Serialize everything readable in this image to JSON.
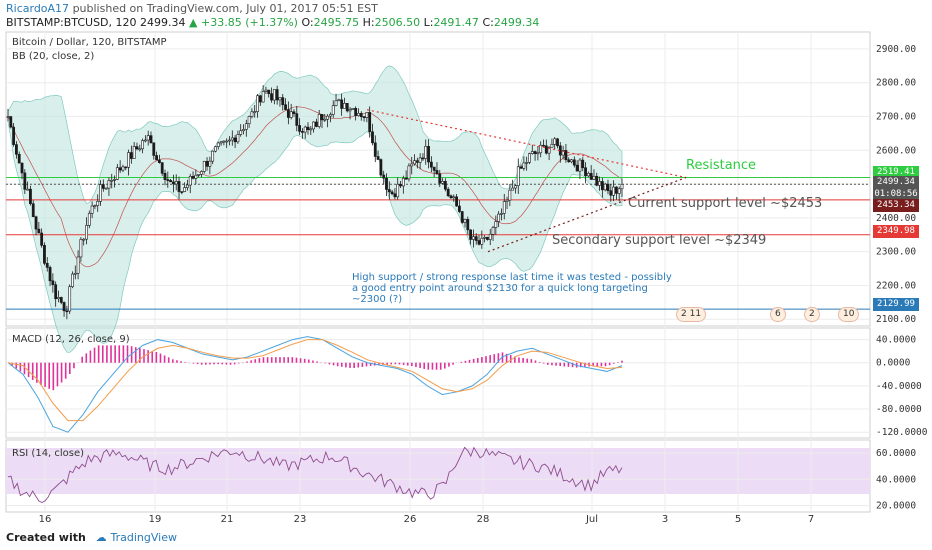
{
  "header": {
    "user": "RicardoA17",
    "published": "published on TradingView.com, July 01, 2017 05:51 EST",
    "symbol": "BITSTAMP:BTCUSD, 120",
    "last": "2499.34",
    "change_arrow": "▲",
    "change": "+33.85 (+1.37%)",
    "o_label": "O:",
    "o": "2495.75",
    "h_label": "H:",
    "h": "2506.50",
    "l_label": "L:",
    "l": "2491.47",
    "c_label": "C:",
    "c": "2499.34"
  },
  "panes": {
    "price_title": "Bitcoin / Dollar, 120, BITSTAMP",
    "bb_title": "BB (20, close, 2)",
    "macd_title": "MACD (12, 26, close, 9)",
    "rsi_title": "RSI (14, close)"
  },
  "annotations": {
    "resistance": "Resistance",
    "current_support": "Current support level ~$2453",
    "secondary_support": "Secondary support level ~$2349",
    "high_support_1": "High support / strong response last time it was tested - possibly",
    "high_support_2": "a good entry point around $2130 for a quick long targeting",
    "high_support_3": "~2300 (?)"
  },
  "price_labels": {
    "resistance": "2519.41",
    "last": "2499.34",
    "countdown": "01:08:56",
    "support": "2453.34",
    "secondary": "2349.98",
    "high_support": "2129.99"
  },
  "event_flags": [
    {
      "label": "2  11"
    },
    {
      "label": "6"
    },
    {
      "label": "2"
    },
    {
      "label": "10"
    }
  ],
  "footer": {
    "created": "Created with",
    "brand": "TradingView"
  },
  "colors": {
    "up": "#26a544",
    "candle": "#1b1b1b",
    "bb_fill": "#bfe5e0",
    "resistance": "#2ecc40",
    "support": "#e53935",
    "high_support": "#2a7ab8",
    "macd_hist": "#e0309a",
    "macd_line": "#4aa3df",
    "signal_line": "#f39c4a",
    "rsi_line": "#8e4d8e",
    "rsi_band": "#ecdcf5"
  },
  "chart_data": [
    {
      "type": "candlestick",
      "name": "Bitcoin / Dollar, 120, BITSTAMP",
      "indicator": "BB (20, close, 2)",
      "x_ticks": [
        "16",
        "19",
        "21",
        "23",
        "26",
        "28",
        "Jul",
        "3",
        "5",
        "7"
      ],
      "ylim": [
        2080,
        2950
      ],
      "y_ticks": [
        2100,
        2200,
        2300,
        2400,
        2500,
        2600,
        2700,
        2800,
        2900
      ],
      "y_tick_labels": [
        "2100.00",
        "2200.00",
        "2300.00",
        "2400.00",
        "2500.00",
        "2600.00",
        "2700.00",
        "2800.00",
        "2900.00"
      ],
      "close_path": [
        2700,
        2560,
        2430,
        2300,
        2180,
        2129.99,
        2280,
        2410,
        2480,
        2520,
        2560,
        2600,
        2640,
        2570,
        2500,
        2480,
        2520,
        2560,
        2600,
        2620,
        2660,
        2700,
        2780,
        2760,
        2720,
        2680,
        2650,
        2700,
        2730,
        2740,
        2720,
        2700,
        2560,
        2470,
        2500,
        2560,
        2600,
        2540,
        2470,
        2420,
        2330,
        2320,
        2370,
        2440,
        2530,
        2580,
        2600,
        2620,
        2590,
        2560,
        2540,
        2500,
        2470,
        2499.34
      ],
      "levels": [
        {
          "label": "Resistance",
          "value": 2519.41
        },
        {
          "label": "Current support level ~$2453",
          "value": 2453.34
        },
        {
          "label": "Secondary support level ~$2349",
          "value": 2349.98
        },
        {
          "value": 2129.99
        }
      ],
      "last_price": 2499.34
    },
    {
      "type": "line",
      "name": "MACD (12, 26, close, 9)",
      "ylim": [
        -130,
        60
      ],
      "y_ticks": [
        40,
        0,
        -40,
        -80,
        -120
      ],
      "y_tick_labels": [
        "40.0000",
        "0.0000",
        "-40.0000",
        "-80.0000",
        "-120.0000"
      ],
      "series": [
        {
          "name": "MACD",
          "values": [
            0,
            -20,
            -60,
            -110,
            -120,
            -90,
            -50,
            -20,
            10,
            30,
            40,
            35,
            25,
            15,
            10,
            5,
            10,
            20,
            30,
            40,
            45,
            40,
            25,
            10,
            0,
            -5,
            -10,
            -20,
            -40,
            -55,
            -50,
            -40,
            -20,
            10,
            20,
            25,
            15,
            5,
            -5,
            -10,
            -15,
            -5
          ]
        },
        {
          "name": "Signal",
          "values": [
            0,
            -5,
            -30,
            -70,
            -100,
            -100,
            -75,
            -45,
            -15,
            10,
            25,
            30,
            25,
            18,
            12,
            8,
            8,
            12,
            22,
            32,
            40,
            40,
            30,
            18,
            5,
            -2,
            -8,
            -15,
            -30,
            -45,
            -50,
            -45,
            -30,
            -5,
            12,
            20,
            18,
            10,
            2,
            -5,
            -10,
            -8
          ]
        }
      ]
    },
    {
      "type": "line",
      "name": "RSI (14, close)",
      "ylim": [
        15,
        70
      ],
      "y_ticks": [
        60,
        40,
        20
      ],
      "y_tick_labels": [
        "60.0000",
        "40.0000",
        "20.0000"
      ],
      "band": [
        30,
        70
      ],
      "series": [
        {
          "name": "RSI",
          "values": [
            40,
            30,
            25,
            32,
            45,
            55,
            58,
            60,
            55,
            50,
            48,
            52,
            56,
            60,
            62,
            58,
            55,
            50,
            52,
            55,
            58,
            52,
            45,
            40,
            35,
            30,
            28,
            35,
            60,
            62,
            58,
            55,
            52,
            50,
            45,
            40,
            35,
            45,
            48
          ]
        }
      ]
    }
  ]
}
